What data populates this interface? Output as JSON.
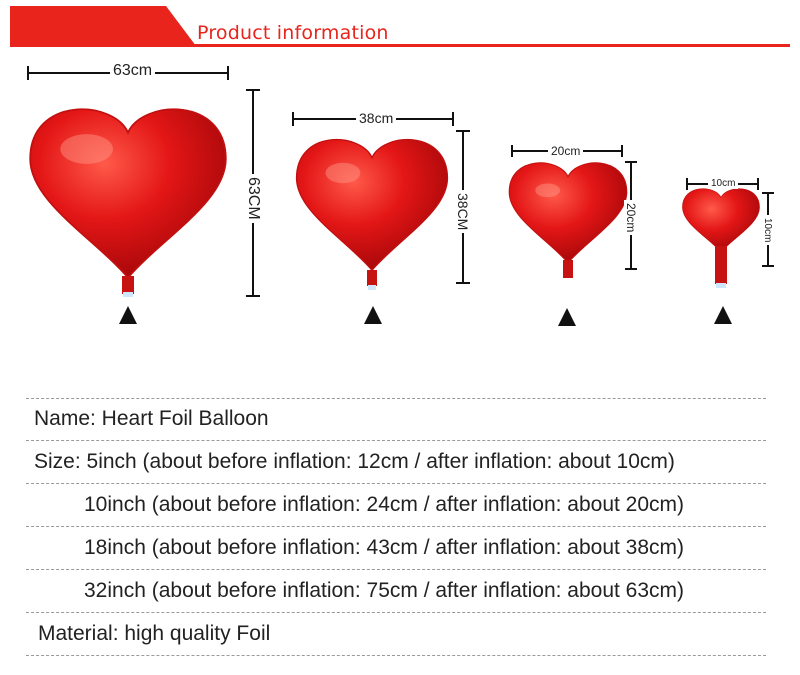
{
  "header": {
    "title": "Product information"
  },
  "balloons": [
    {
      "width_label": "63cm",
      "height_label": "63CM"
    },
    {
      "width_label": "38cm",
      "height_label": "38CM"
    },
    {
      "width_label": "20cm",
      "height_label": "20cm"
    },
    {
      "width_label": "10cm",
      "height_label": "10cm"
    }
  ],
  "info": {
    "name": "Name: Heart Foil Balloon",
    "size_5": "Size: 5inch (about before inflation: 12cm / after inflation: about 10cm)",
    "size_10": "10inch (about before inflation: 24cm / after inflation: about 20cm)",
    "size_18": "18inch (about before inflation: 43cm / after inflation: about 38cm)",
    "size_32": "32inch (about before inflation: 75cm / after inflation: about 63cm)",
    "material": "Material: high quality Foil"
  },
  "colors": {
    "accent": "#e8241c",
    "balloon": "#e01515"
  }
}
